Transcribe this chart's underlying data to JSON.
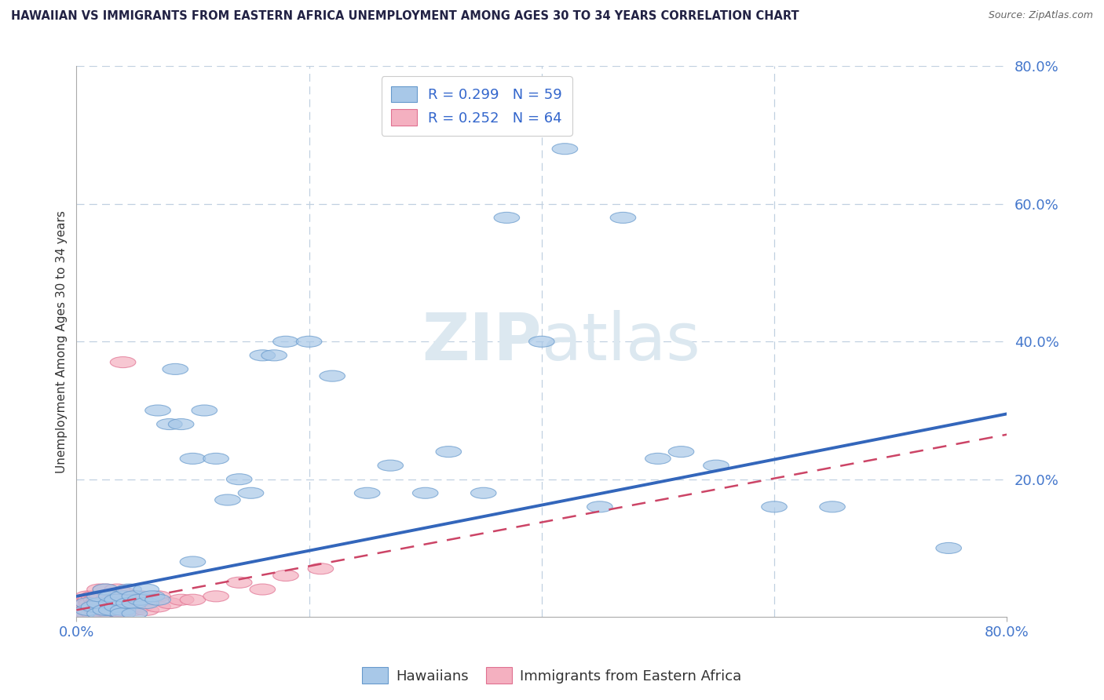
{
  "title": "HAWAIIAN VS IMMIGRANTS FROM EASTERN AFRICA UNEMPLOYMENT AMONG AGES 30 TO 34 YEARS CORRELATION CHART",
  "source": "Source: ZipAtlas.com",
  "ylabel": "Unemployment Among Ages 30 to 34 years",
  "xlim": [
    0.0,
    0.8
  ],
  "ylim": [
    0.0,
    0.8
  ],
  "hawaiian_color_fill": "#a8c8e8",
  "hawaiian_color_edge": "#6699cc",
  "eastern_color_fill": "#f4b0c0",
  "eastern_color_edge": "#e07090",
  "trend_hawaiian_color": "#3366bb",
  "trend_eastern_color": "#cc4466",
  "grid_color": "#c0d0e0",
  "background_color": "#ffffff",
  "watermark_color": "#dce8f0",
  "title_color": "#222244",
  "source_color": "#666666",
  "tick_color": "#4477cc",
  "label_color": "#333333",
  "legend_label_color": "#3366cc",
  "hawaiian_x": [
    0.005,
    0.01,
    0.01,
    0.015,
    0.02,
    0.02,
    0.02,
    0.025,
    0.025,
    0.03,
    0.03,
    0.03,
    0.035,
    0.035,
    0.04,
    0.04,
    0.04,
    0.045,
    0.045,
    0.05,
    0.05,
    0.05,
    0.055,
    0.06,
    0.06,
    0.065,
    0.07,
    0.07,
    0.08,
    0.085,
    0.09,
    0.1,
    0.1,
    0.11,
    0.12,
    0.13,
    0.14,
    0.15,
    0.16,
    0.17,
    0.18,
    0.2,
    0.22,
    0.25,
    0.27,
    0.3,
    0.32,
    0.35,
    0.37,
    0.4,
    0.42,
    0.45,
    0.47,
    0.5,
    0.52,
    0.55,
    0.6,
    0.65,
    0.75
  ],
  "hawaiian_y": [
    0.005,
    0.01,
    0.02,
    0.015,
    0.02,
    0.03,
    0.005,
    0.01,
    0.04,
    0.02,
    0.03,
    0.01,
    0.015,
    0.025,
    0.01,
    0.03,
    0.005,
    0.02,
    0.04,
    0.02,
    0.03,
    0.005,
    0.025,
    0.02,
    0.04,
    0.03,
    0.025,
    0.3,
    0.28,
    0.36,
    0.28,
    0.23,
    0.08,
    0.3,
    0.23,
    0.17,
    0.2,
    0.18,
    0.38,
    0.38,
    0.4,
    0.4,
    0.35,
    0.18,
    0.22,
    0.18,
    0.24,
    0.18,
    0.58,
    0.4,
    0.68,
    0.16,
    0.58,
    0.23,
    0.24,
    0.22,
    0.16,
    0.16,
    0.1
  ],
  "eastern_x": [
    0.005,
    0.005,
    0.005,
    0.007,
    0.007,
    0.008,
    0.008,
    0.01,
    0.01,
    0.01,
    0.01,
    0.012,
    0.012,
    0.013,
    0.013,
    0.015,
    0.015,
    0.015,
    0.017,
    0.017,
    0.018,
    0.018,
    0.02,
    0.02,
    0.02,
    0.02,
    0.022,
    0.022,
    0.025,
    0.025,
    0.025,
    0.027,
    0.027,
    0.03,
    0.03,
    0.03,
    0.032,
    0.032,
    0.035,
    0.035,
    0.035,
    0.038,
    0.04,
    0.04,
    0.04,
    0.045,
    0.045,
    0.05,
    0.05,
    0.055,
    0.055,
    0.06,
    0.06,
    0.07,
    0.07,
    0.08,
    0.09,
    0.1,
    0.12,
    0.14,
    0.16,
    0.18,
    0.21,
    0.04
  ],
  "eastern_y": [
    0.005,
    0.01,
    0.02,
    0.008,
    0.015,
    0.005,
    0.018,
    0.01,
    0.02,
    0.03,
    0.005,
    0.012,
    0.025,
    0.008,
    0.02,
    0.005,
    0.015,
    0.03,
    0.01,
    0.025,
    0.008,
    0.02,
    0.005,
    0.015,
    0.025,
    0.04,
    0.01,
    0.03,
    0.008,
    0.02,
    0.04,
    0.012,
    0.025,
    0.005,
    0.015,
    0.03,
    0.01,
    0.025,
    0.008,
    0.02,
    0.04,
    0.015,
    0.008,
    0.02,
    0.035,
    0.012,
    0.025,
    0.01,
    0.03,
    0.015,
    0.03,
    0.01,
    0.025,
    0.015,
    0.03,
    0.02,
    0.025,
    0.025,
    0.03,
    0.05,
    0.04,
    0.06,
    0.07,
    0.37
  ],
  "trend_h_x0": 0.0,
  "trend_h_x1": 0.8,
  "trend_h_y0": 0.03,
  "trend_h_y1": 0.295,
  "trend_e_x0": 0.0,
  "trend_e_x1": 0.8,
  "trend_e_y0": 0.01,
  "trend_e_y1": 0.265
}
